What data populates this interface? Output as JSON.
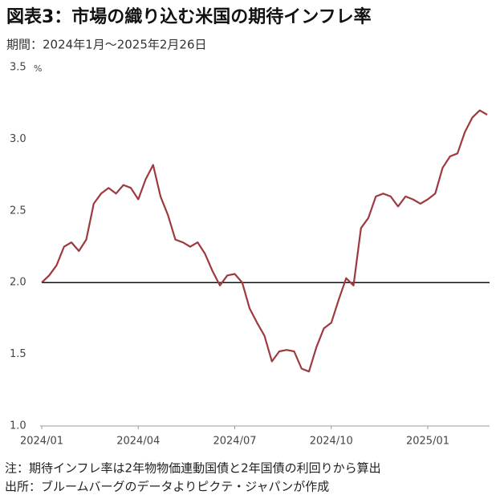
{
  "chart_data": {
    "type": "line",
    "title": "図表3：市場の織り込む米国の期待インフレ率",
    "subtitle": "期間：2024年1月～2025年2月26日",
    "y_unit": "%",
    "categories": [
      "2024/01",
      null,
      null,
      null,
      null,
      null,
      null,
      null,
      null,
      null,
      null,
      null,
      null,
      "2024/04",
      null,
      null,
      null,
      null,
      null,
      null,
      null,
      null,
      null,
      null,
      null,
      null,
      "2024/07",
      null,
      null,
      null,
      null,
      null,
      null,
      null,
      null,
      null,
      null,
      null,
      null,
      "2024/10",
      null,
      null,
      null,
      null,
      null,
      null,
      null,
      null,
      null,
      null,
      null,
      null,
      "2025/01",
      null,
      null,
      null,
      null,
      null,
      null,
      null,
      null
    ],
    "series": [
      {
        "name": "期待インフレ率",
        "color": "#9e3a3f",
        "values": [
          2.0,
          2.05,
          2.12,
          2.25,
          2.28,
          2.22,
          2.3,
          2.55,
          2.62,
          2.66,
          2.62,
          2.68,
          2.66,
          2.58,
          2.72,
          2.82,
          2.6,
          2.47,
          2.3,
          2.28,
          2.25,
          2.28,
          2.2,
          2.08,
          1.98,
          2.05,
          2.06,
          2.0,
          1.82,
          1.72,
          1.63,
          1.45,
          1.52,
          1.53,
          1.52,
          1.4,
          1.38,
          1.55,
          1.68,
          1.72,
          1.88,
          2.03,
          1.98,
          2.38,
          2.45,
          2.6,
          2.62,
          2.6,
          2.53,
          2.6,
          2.58,
          2.55,
          2.58,
          2.62,
          2.8,
          2.88,
          2.9,
          3.05,
          3.15,
          3.2,
          3.17
        ]
      }
    ],
    "reference_line": {
      "value": 2,
      "color": "#111"
    },
    "ylim": [
      1,
      3.5
    ],
    "yticks": [
      {
        "value": 1,
        "label": "1.0"
      },
      1.5,
      {
        "value": 2,
        "label": "2.0"
      },
      2.5,
      {
        "value": 3,
        "label": "3.0"
      },
      3.5
    ],
    "grid": false,
    "notes": [
      "注：期待インフレ率は2年物物価連動国債と2年国債の利回りから算出",
      "出所：ブルームバーグのデータよりピクテ・ジャパンが作成"
    ]
  }
}
